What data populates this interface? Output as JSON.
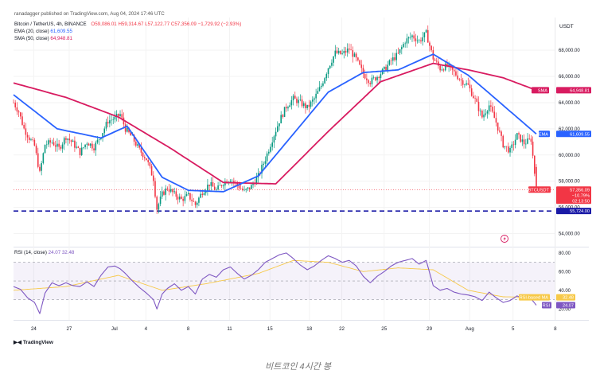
{
  "header": {
    "publisher": "ranadagger published on TradingView.com, Aug 04, 2024 17:46 UTC",
    "symbol": "Bitcoin / TetherUS, 4h, BINANCE",
    "ohlc": "O59,086.01 H59,314.67 L57,122.77 C57,356.09 −1,729.92 (−2.93%)",
    "ema_label": "EMA (20, close)",
    "ema_value": "61,609.55",
    "sma_label": "SMA (50, close)",
    "sma_value": "64,948.81",
    "rsi_label": "RSI (14, close)",
    "rsi_values": "24.07  32.48"
  },
  "currency": "USDT",
  "price_axis": {
    "ticks": [
      "68,000.00",
      "66,000.00",
      "64,000.00",
      "62,000.00",
      "60,000.00",
      "58,000.00",
      "56,000.00",
      "54,000.00"
    ]
  },
  "rsi_axis": {
    "ticks": [
      "80.00",
      "60.00",
      "40.00",
      "20.00"
    ]
  },
  "x_axis": {
    "ticks": [
      "24",
      "27",
      "Jul",
      "4",
      "8",
      "11",
      "15",
      "18",
      "22",
      "25",
      "29",
      "Aug",
      "5",
      "8"
    ]
  },
  "markers": {
    "sma": {
      "label": "SMA",
      "value": "64,948.81",
      "color": "#d81b60"
    },
    "ema": {
      "label": "EMA",
      "value": "61,609.55",
      "color": "#2962ff"
    },
    "price": {
      "label": "BTCUSDT",
      "value": "57,356.09",
      "change": "−10.79%",
      "countdown": "02:13:50",
      "color": "#f23645"
    },
    "support": {
      "value": "55,724.00",
      "color": "#1a1aa6"
    },
    "rsi_ma": {
      "label": "RSI-based MA",
      "value": "32.48",
      "color": "#f7c948"
    },
    "rsi": {
      "label": "RSI",
      "value": "24.07",
      "color": "#7e57c2"
    }
  },
  "footer": {
    "brand": "TradingView"
  },
  "caption": "비트코인 4시간 봉",
  "chart_data": [
    {
      "type": "candlestick",
      "title": "Bitcoin / TetherUS, 4h, BINANCE",
      "ylim": [
        53000,
        70500
      ],
      "x_dates": [
        "Jun 24",
        "Jun 27",
        "Jul 1",
        "Jul 4",
        "Jul 8",
        "Jul 11",
        "Jul 15",
        "Jul 18",
        "Jul 22",
        "Jul 25",
        "Jul 29",
        "Aug 1",
        "Aug 5",
        "Aug 8"
      ],
      "close_path": [
        [
          0,
          64000
        ],
        [
          3,
          63300
        ],
        [
          6,
          62000
        ],
        [
          9,
          61300
        ],
        [
          12,
          60700
        ],
        [
          15,
          58600
        ],
        [
          18,
          60800
        ],
        [
          22,
          61000
        ],
        [
          26,
          60500
        ],
        [
          30,
          61400
        ],
        [
          34,
          60900
        ],
        [
          38,
          60200
        ],
        [
          42,
          61000
        ],
        [
          46,
          60600
        ],
        [
          50,
          61500
        ],
        [
          54,
          62600
        ],
        [
          58,
          62800
        ],
        [
          61,
          63100
        ],
        [
          64,
          62000
        ],
        [
          68,
          61300
        ],
        [
          72,
          60400
        ],
        [
          76,
          59700
        ],
        [
          80,
          58200
        ],
        [
          82,
          55900
        ],
        [
          85,
          57000
        ],
        [
          88,
          57500
        ],
        [
          92,
          57000
        ],
        [
          96,
          56600
        ],
        [
          100,
          56900
        ],
        [
          104,
          56200
        ],
        [
          108,
          57200
        ],
        [
          112,
          57800
        ],
        [
          116,
          57300
        ],
        [
          120,
          57900
        ],
        [
          124,
          58200
        ],
        [
          128,
          57700
        ],
        [
          132,
          57200
        ],
        [
          136,
          57600
        ],
        [
          140,
          58400
        ],
        [
          144,
          59700
        ],
        [
          148,
          61200
        ],
        [
          152,
          62600
        ],
        [
          156,
          63700
        ],
        [
          160,
          64300
        ],
        [
          164,
          64000
        ],
        [
          168,
          63600
        ],
        [
          172,
          64300
        ],
        [
          176,
          65300
        ],
        [
          180,
          66700
        ],
        [
          184,
          67800
        ],
        [
          188,
          67700
        ],
        [
          192,
          68100
        ],
        [
          196,
          67300
        ],
        [
          200,
          66200
        ],
        [
          204,
          65600
        ],
        [
          208,
          66000
        ],
        [
          212,
          66500
        ],
        [
          216,
          67200
        ],
        [
          220,
          67700
        ],
        [
          224,
          68700
        ],
        [
          228,
          69100
        ],
        [
          232,
          68700
        ],
        [
          236,
          69300
        ],
        [
          240,
          67400
        ],
        [
          244,
          66600
        ],
        [
          248,
          66800
        ],
        [
          252,
          66300
        ],
        [
          256,
          65700
        ],
        [
          260,
          65300
        ],
        [
          264,
          64200
        ],
        [
          268,
          62900
        ],
        [
          272,
          63800
        ],
        [
          276,
          62500
        ],
        [
          280,
          60800
        ],
        [
          284,
          60300
        ],
        [
          288,
          61500
        ],
        [
          292,
          60900
        ],
        [
          296,
          61200
        ],
        [
          299,
          57356
        ]
      ],
      "sma50_path": [
        [
          0,
          65500
        ],
        [
          30,
          64400
        ],
        [
          60,
          62900
        ],
        [
          90,
          60500
        ],
        [
          120,
          57900
        ],
        [
          150,
          57800
        ],
        [
          180,
          61800
        ],
        [
          210,
          65600
        ],
        [
          240,
          67000
        ],
        [
          260,
          66500
        ],
        [
          280,
          65900
        ],
        [
          299,
          64948.81
        ]
      ],
      "ema20_path": [
        [
          0,
          64600
        ],
        [
          25,
          62000
        ],
        [
          50,
          61300
        ],
        [
          65,
          62200
        ],
        [
          85,
          58300
        ],
        [
          100,
          57300
        ],
        [
          120,
          57200
        ],
        [
          140,
          58400
        ],
        [
          160,
          61600
        ],
        [
          180,
          64800
        ],
        [
          200,
          66300
        ],
        [
          220,
          66500
        ],
        [
          240,
          67700
        ],
        [
          260,
          66100
        ],
        [
          280,
          63800
        ],
        [
          299,
          61609.55
        ]
      ],
      "support_level": 55724,
      "last": {
        "open": 59086.01,
        "high": 59314.67,
        "low": 57122.77,
        "close": 57356.09,
        "change": -1729.92,
        "change_pct": -2.93
      }
    },
    {
      "type": "line",
      "title": "RSI (14, close)",
      "ylim": [
        10,
        85
      ],
      "rsi_path": [
        [
          0,
          44
        ],
        [
          4,
          41
        ],
        [
          8,
          32
        ],
        [
          12,
          27
        ],
        [
          15,
          15
        ],
        [
          18,
          37
        ],
        [
          22,
          48
        ],
        [
          26,
          45
        ],
        [
          30,
          48
        ],
        [
          34,
          45
        ],
        [
          38,
          44
        ],
        [
          42,
          49
        ],
        [
          46,
          44
        ],
        [
          50,
          56
        ],
        [
          54,
          65
        ],
        [
          58,
          66
        ],
        [
          61,
          63
        ],
        [
          64,
          58
        ],
        [
          68,
          50
        ],
        [
          72,
          43
        ],
        [
          76,
          37
        ],
        [
          80,
          30
        ],
        [
          82,
          20
        ],
        [
          85,
          36
        ],
        [
          88,
          42
        ],
        [
          92,
          47
        ],
        [
          96,
          40
        ],
        [
          100,
          44
        ],
        [
          104,
          36
        ],
        [
          108,
          52
        ],
        [
          112,
          57
        ],
        [
          116,
          54
        ],
        [
          120,
          62
        ],
        [
          124,
          65
        ],
        [
          128,
          58
        ],
        [
          132,
          52
        ],
        [
          136,
          56
        ],
        [
          140,
          62
        ],
        [
          144,
          70
        ],
        [
          148,
          74
        ],
        [
          152,
          78
        ],
        [
          156,
          80
        ],
        [
          160,
          74
        ],
        [
          164,
          67
        ],
        [
          168,
          62
        ],
        [
          172,
          66
        ],
        [
          176,
          72
        ],
        [
          180,
          77
        ],
        [
          184,
          74
        ],
        [
          188,
          70
        ],
        [
          192,
          72
        ],
        [
          196,
          66
        ],
        [
          200,
          55
        ],
        [
          204,
          48
        ],
        [
          208,
          55
        ],
        [
          212,
          60
        ],
        [
          216,
          66
        ],
        [
          220,
          70
        ],
        [
          224,
          72
        ],
        [
          228,
          74
        ],
        [
          232,
          68
        ],
        [
          236,
          72
        ],
        [
          240,
          45
        ],
        [
          244,
          40
        ],
        [
          248,
          42
        ],
        [
          252,
          38
        ],
        [
          256,
          36
        ],
        [
          260,
          35
        ],
        [
          264,
          33
        ],
        [
          268,
          29
        ],
        [
          272,
          38
        ],
        [
          276,
          32
        ],
        [
          280,
          27
        ],
        [
          284,
          29
        ],
        [
          288,
          34
        ],
        [
          292,
          30
        ],
        [
          296,
          31
        ],
        [
          299,
          24.07
        ]
      ],
      "rsi_ma_path": [
        [
          0,
          40
        ],
        [
          30,
          44
        ],
        [
          60,
          56
        ],
        [
          85,
          40
        ],
        [
          110,
          47
        ],
        [
          140,
          58
        ],
        [
          160,
          72
        ],
        [
          180,
          70
        ],
        [
          200,
          60
        ],
        [
          220,
          64
        ],
        [
          240,
          62
        ],
        [
          260,
          40
        ],
        [
          280,
          33
        ],
        [
          299,
          32.48
        ]
      ],
      "upper_band": 70,
      "middle": 50,
      "lower_band": 30
    }
  ]
}
